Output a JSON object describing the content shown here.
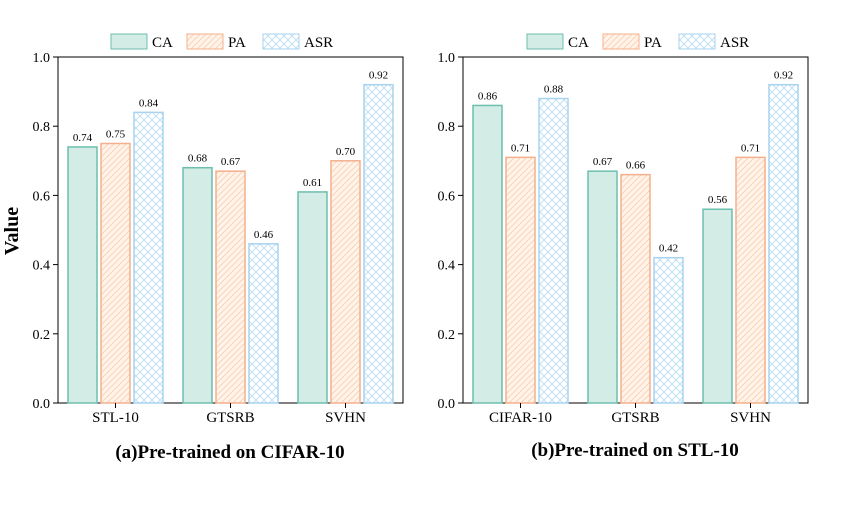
{
  "y_axis_label": "Value",
  "colors": {
    "CA_fill": "#d3ece5",
    "CA_stroke": "#6cbfae",
    "PA_fill": "#fff3ea",
    "PA_stroke": "#f4b08c",
    "ASR_fill": "#ffffff",
    "ASR_stroke": "#a9d3ef",
    "axis": "#000000"
  },
  "chart_data": [
    {
      "type": "bar",
      "title": "(a)Pre-trained on CIFAR-10",
      "xlabel": "",
      "ylabel": "Value",
      "ylim": [
        0,
        1.0
      ],
      "yticks": [
        "0.0",
        "0.2",
        "0.4",
        "0.6",
        "0.8",
        "1.0"
      ],
      "legend": [
        "CA",
        "PA",
        "ASR"
      ],
      "legend_position": "top-center",
      "categories": [
        "STL-10",
        "GTSRB",
        "SVHN"
      ],
      "series": [
        {
          "name": "CA",
          "values": [
            0.74,
            0.68,
            0.61
          ],
          "labels": [
            "0.74",
            "0.68",
            "0.61"
          ]
        },
        {
          "name": "PA",
          "values": [
            0.75,
            0.67,
            0.7
          ],
          "labels": [
            "0.75",
            "0.67",
            "0.70"
          ]
        },
        {
          "name": "ASR",
          "values": [
            0.84,
            0.46,
            0.92
          ],
          "labels": [
            "0.84",
            "0.46",
            "0.92"
          ]
        }
      ]
    },
    {
      "type": "bar",
      "title": "(b)Pre-trained on STL-10",
      "xlabel": "",
      "ylabel": "",
      "ylim": [
        0,
        1.0
      ],
      "yticks": [
        "0.0",
        "0.2",
        "0.4",
        "0.6",
        "0.8",
        "1.0"
      ],
      "legend": [
        "CA",
        "PA",
        "ASR"
      ],
      "legend_position": "top-center",
      "categories": [
        "CIFAR-10",
        "GTSRB",
        "SVHN"
      ],
      "series": [
        {
          "name": "CA",
          "values": [
            0.86,
            0.67,
            0.56
          ],
          "labels": [
            "0.86",
            "0.67",
            "0.56"
          ]
        },
        {
          "name": "PA",
          "values": [
            0.71,
            0.66,
            0.71
          ],
          "labels": [
            "0.71",
            "0.66",
            "0.71"
          ]
        },
        {
          "name": "ASR",
          "values": [
            0.88,
            0.42,
            0.92
          ],
          "labels": [
            "0.88",
            "0.42",
            "0.92"
          ]
        }
      ]
    }
  ]
}
